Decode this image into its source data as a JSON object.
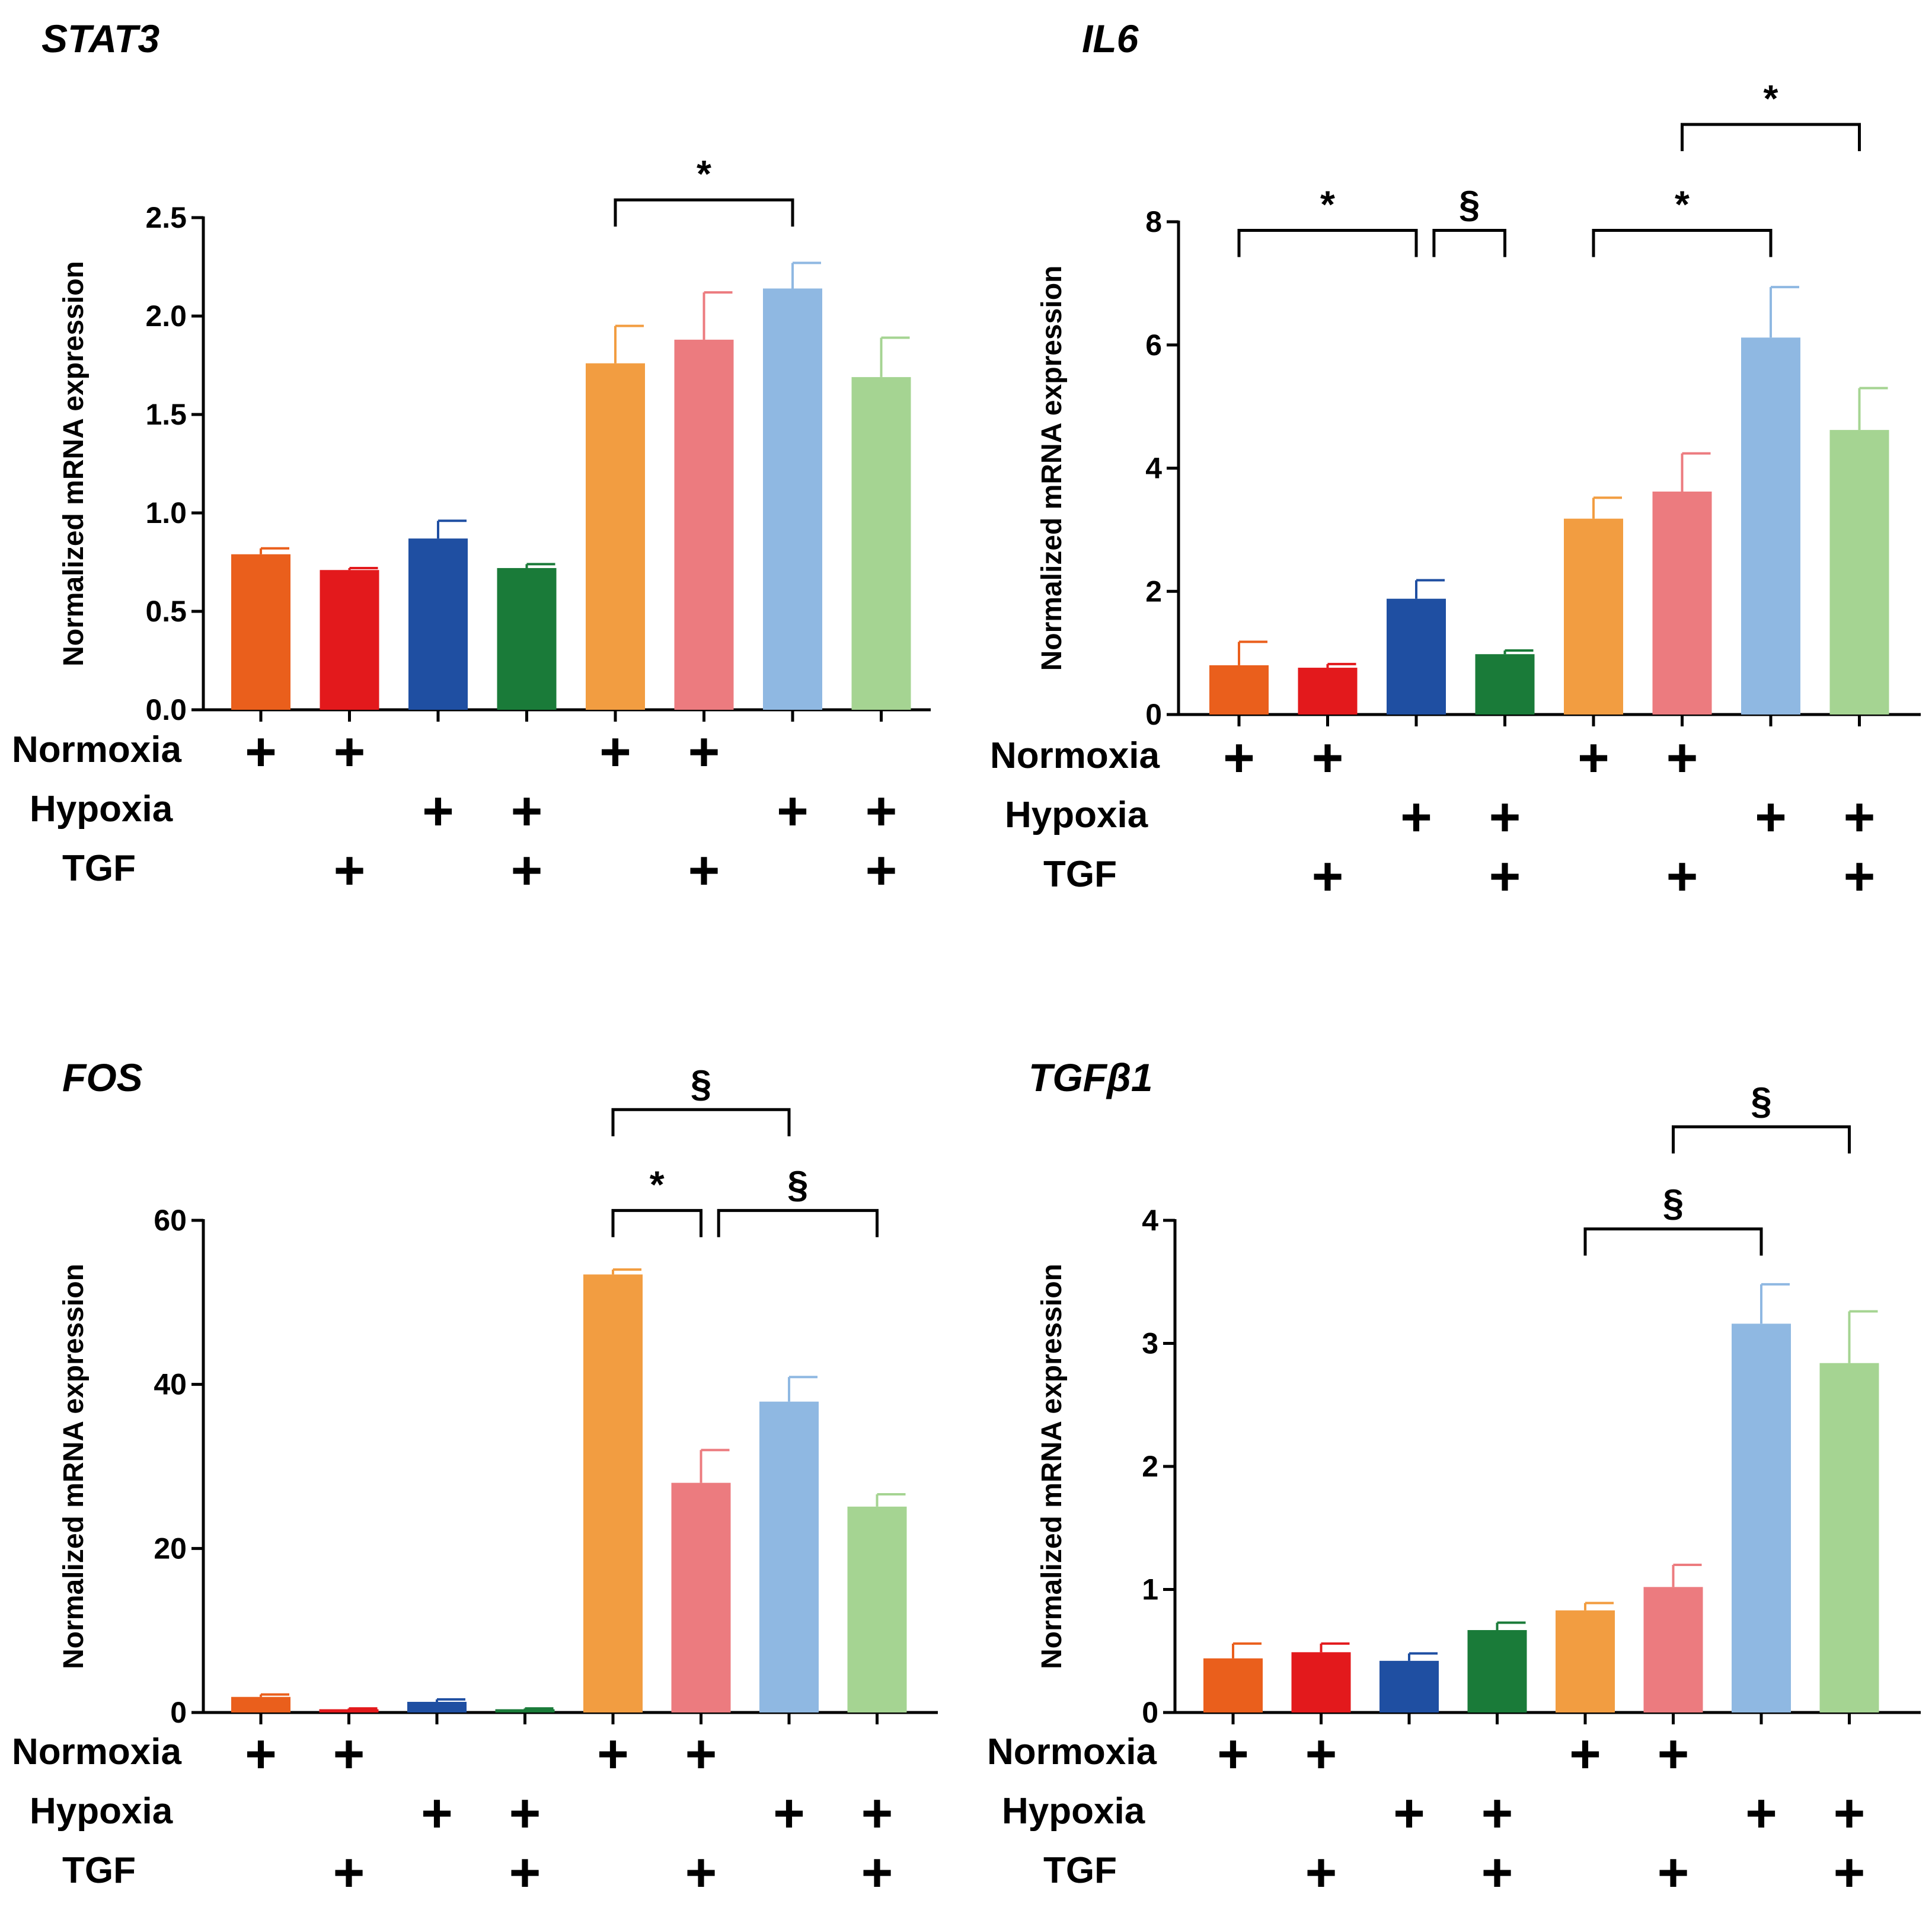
{
  "condition_rows": [
    "Normoxia",
    "Hypoxia",
    "TGF"
  ],
  "plus_symbol": "+",
  "colors": [
    "#ea5f1c",
    "#e3191c",
    "#1f4fa2",
    "#1a7b39",
    "#f29d41",
    "#ec7b7f",
    "#8fb8e2",
    "#a5d492"
  ],
  "chart_data": [
    {
      "type": "bar",
      "title": "STAT3",
      "ylabel": "Normalized mRNA expression",
      "xlabel": "",
      "ylim": [
        0,
        2.5
      ],
      "yticks": [
        0,
        0.5,
        1,
        1.5,
        2,
        2.5
      ],
      "ytick_labels": [
        "0.0",
        "0.5",
        "1.0",
        "1.5",
        "2.0",
        "2.5"
      ],
      "values": [
        0.79,
        0.71,
        0.87,
        0.72,
        1.76,
        1.88,
        2.14,
        1.69
      ],
      "errors": [
        0.03,
        0.01,
        0.09,
        0.02,
        0.19,
        0.24,
        0.13,
        0.2
      ],
      "conditions": [
        {
          "normoxia": true,
          "hypoxia": false,
          "tgf": false
        },
        {
          "normoxia": true,
          "hypoxia": false,
          "tgf": true
        },
        {
          "normoxia": false,
          "hypoxia": true,
          "tgf": false
        },
        {
          "normoxia": false,
          "hypoxia": true,
          "tgf": true
        },
        {
          "normoxia": true,
          "hypoxia": false,
          "tgf": false
        },
        {
          "normoxia": true,
          "hypoxia": false,
          "tgf": true
        },
        {
          "normoxia": false,
          "hypoxia": true,
          "tgf": false
        },
        {
          "normoxia": false,
          "hypoxia": true,
          "tgf": true
        }
      ],
      "significance": [
        {
          "from": 5,
          "to": 7,
          "symbol": "*",
          "y": 2.59
        }
      ]
    },
    {
      "type": "bar",
      "title": "IL6",
      "ylabel": "Normalized mRNA expression",
      "xlabel": "",
      "ylim": [
        0,
        8
      ],
      "yticks": [
        0,
        2,
        4,
        6,
        8
      ],
      "ytick_labels": [
        "0",
        "2",
        "4",
        "6",
        "8"
      ],
      "values": [
        0.8,
        0.76,
        1.88,
        0.98,
        3.18,
        3.62,
        6.12,
        4.62
      ],
      "errors": [
        0.38,
        0.06,
        0.3,
        0.06,
        0.34,
        0.62,
        0.82,
        0.68
      ],
      "conditions": [
        {
          "normoxia": true,
          "hypoxia": false,
          "tgf": false
        },
        {
          "normoxia": true,
          "hypoxia": false,
          "tgf": true
        },
        {
          "normoxia": false,
          "hypoxia": true,
          "tgf": false
        },
        {
          "normoxia": false,
          "hypoxia": true,
          "tgf": true
        },
        {
          "normoxia": true,
          "hypoxia": false,
          "tgf": false
        },
        {
          "normoxia": true,
          "hypoxia": false,
          "tgf": true
        },
        {
          "normoxia": false,
          "hypoxia": true,
          "tgf": false
        },
        {
          "normoxia": false,
          "hypoxia": true,
          "tgf": true
        }
      ],
      "significance": [
        {
          "from": 1,
          "to": 3,
          "symbol": "*",
          "y": 7.86
        },
        {
          "from": 3.2,
          "to": 4,
          "symbol": "§",
          "y": 7.86
        },
        {
          "from": 5,
          "to": 7,
          "symbol": "*",
          "y": 7.86
        },
        {
          "from": 6,
          "to": 8,
          "symbol": "*",
          "y": 9.58
        }
      ]
    },
    {
      "type": "bar",
      "title": "FOS",
      "ylabel": "Normalized mRNA expression",
      "xlabel": "",
      "ylim": [
        0,
        60
      ],
      "yticks": [
        0,
        20,
        40,
        60
      ],
      "ytick_labels": [
        "0",
        "20",
        "40",
        "60"
      ],
      "values": [
        1.9,
        0.4,
        1.3,
        0.4,
        53.4,
        28.0,
        37.9,
        25.1
      ],
      "errors": [
        0.3,
        0.1,
        0.3,
        0.1,
        0.6,
        4.0,
        3.0,
        1.5
      ],
      "conditions": [
        {
          "normoxia": true,
          "hypoxia": false,
          "tgf": false
        },
        {
          "normoxia": true,
          "hypoxia": false,
          "tgf": true
        },
        {
          "normoxia": false,
          "hypoxia": true,
          "tgf": false
        },
        {
          "normoxia": false,
          "hypoxia": true,
          "tgf": true
        },
        {
          "normoxia": true,
          "hypoxia": false,
          "tgf": false
        },
        {
          "normoxia": true,
          "hypoxia": false,
          "tgf": true
        },
        {
          "normoxia": false,
          "hypoxia": true,
          "tgf": false
        },
        {
          "normoxia": false,
          "hypoxia": true,
          "tgf": true
        }
      ],
      "significance": [
        {
          "from": 5,
          "to": 7,
          "symbol": "§",
          "y": 73.5
        },
        {
          "from": 5,
          "to": 6,
          "symbol": "*",
          "y": 61.2
        },
        {
          "from": 6.2,
          "to": 8,
          "symbol": "§",
          "y": 61.2
        }
      ]
    },
    {
      "type": "bar",
      "title": "TGFβ1",
      "ylabel": "Normalized mRNA expression",
      "xlabel": "",
      "ylim": [
        0,
        4
      ],
      "yticks": [
        0,
        1,
        2,
        3,
        4
      ],
      "ytick_labels": [
        "0",
        "1",
        "2",
        "3",
        "4"
      ],
      "values": [
        0.44,
        0.49,
        0.42,
        0.67,
        0.83,
        1.02,
        3.16,
        2.84
      ],
      "errors": [
        0.12,
        0.07,
        0.06,
        0.06,
        0.06,
        0.18,
        0.32,
        0.42
      ],
      "conditions": [
        {
          "normoxia": true,
          "hypoxia": false,
          "tgf": false
        },
        {
          "normoxia": true,
          "hypoxia": false,
          "tgf": true
        },
        {
          "normoxia": false,
          "hypoxia": true,
          "tgf": false
        },
        {
          "normoxia": false,
          "hypoxia": true,
          "tgf": true
        },
        {
          "normoxia": true,
          "hypoxia": false,
          "tgf": false
        },
        {
          "normoxia": true,
          "hypoxia": false,
          "tgf": true
        },
        {
          "normoxia": false,
          "hypoxia": true,
          "tgf": false
        },
        {
          "normoxia": false,
          "hypoxia": true,
          "tgf": true
        }
      ],
      "significance": [
        {
          "from": 5,
          "to": 7,
          "symbol": "§",
          "y": 3.93
        },
        {
          "from": 6,
          "to": 8,
          "symbol": "§",
          "y": 4.76
        }
      ]
    }
  ]
}
